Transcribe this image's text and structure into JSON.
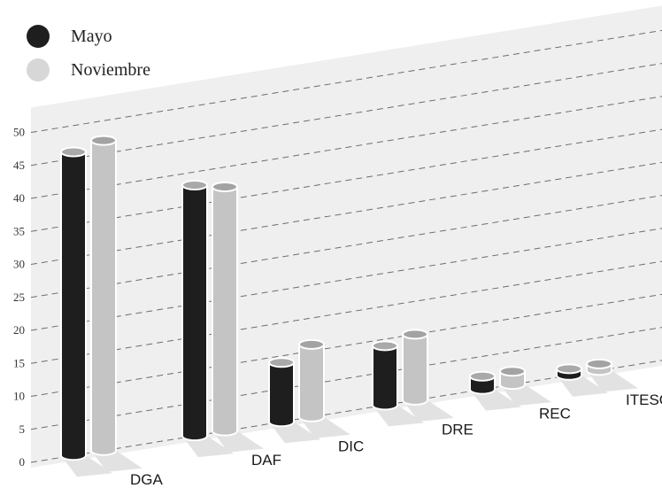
{
  "chart_data": {
    "type": "bar",
    "categories": [
      "DGA",
      "DAF",
      "DIC",
      "DRE",
      "REC",
      "ITESO, AC"
    ],
    "series": [
      {
        "name": "Mayo",
        "values": [
          46,
          38,
          9,
          9,
          2,
          1
        ]
      },
      {
        "name": "Noviembre",
        "values": [
          47,
          37,
          11,
          10,
          2,
          1
        ]
      }
    ],
    "ylim": [
      0,
      50
    ],
    "yticks": [
      0,
      5,
      10,
      15,
      20,
      25,
      30,
      35,
      40,
      45,
      50
    ],
    "grid": true,
    "legend_position": "top-left",
    "colors": {
      "Mayo": "#1e1e1e",
      "Noviembre": "#c4c4c5"
    }
  },
  "legend": {
    "mayo": "Mayo",
    "noviembre": "Noviembre"
  }
}
